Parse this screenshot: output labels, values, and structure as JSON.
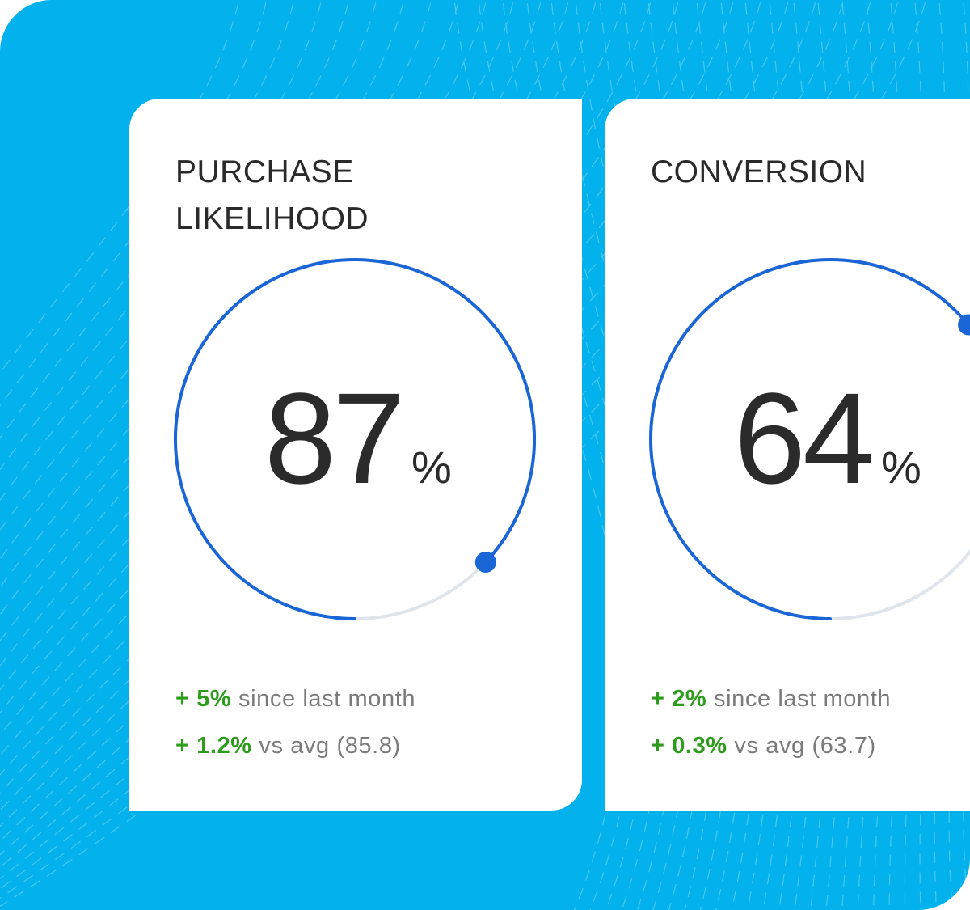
{
  "colors": {
    "background": "#03b1ec",
    "card": "#ffffff",
    "arc": "#1a66d6",
    "track": "#dfe5ea",
    "positive": "#2d9b1b",
    "muted": "#7b7b7b"
  },
  "cards": [
    {
      "title": "PURCHASE LIKELIHOOD",
      "value": "87",
      "unit": "%",
      "progress": 0.87,
      "stats": [
        {
          "change": "+ 5%",
          "text": "since last month"
        },
        {
          "change": "+ 1.2%",
          "text": "vs avg (85.8)"
        }
      ]
    },
    {
      "title": "CONVERSION",
      "value": "64",
      "unit": "%",
      "progress": 0.64,
      "stats": [
        {
          "change": "+ 2%",
          "text": "since last month"
        },
        {
          "change": "+ 0.3%",
          "text": "vs avg (63.7)"
        }
      ]
    }
  ]
}
